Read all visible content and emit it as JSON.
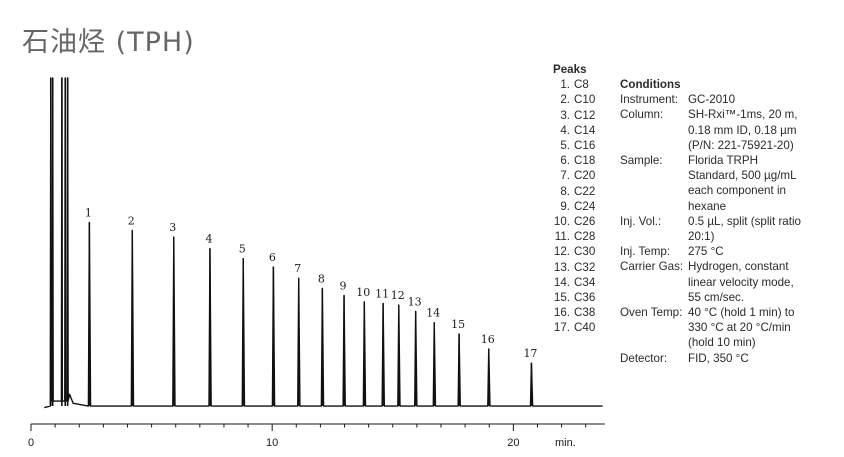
{
  "title": "石油烃 (TPH)",
  "peaks_heading": "Peaks",
  "peaks": [
    {
      "num": "1.",
      "comp": "C8"
    },
    {
      "num": "2.",
      "comp": "C10"
    },
    {
      "num": "3.",
      "comp": "C12"
    },
    {
      "num": "4.",
      "comp": "C14"
    },
    {
      "num": "5.",
      "comp": "C16"
    },
    {
      "num": "6.",
      "comp": "C18"
    },
    {
      "num": "7.",
      "comp": "C20"
    },
    {
      "num": "8.",
      "comp": "C22"
    },
    {
      "num": "9.",
      "comp": "C24"
    },
    {
      "num": "10.",
      "comp": "C26"
    },
    {
      "num": "11.",
      "comp": "C28"
    },
    {
      "num": "12.",
      "comp": "C30"
    },
    {
      "num": "13.",
      "comp": "C32"
    },
    {
      "num": "14.",
      "comp": "C34"
    },
    {
      "num": "15.",
      "comp": "C36"
    },
    {
      "num": "16.",
      "comp": "C38"
    },
    {
      "num": "17.",
      "comp": "C40"
    }
  ],
  "conditions_heading": "Conditions",
  "conditions": [
    {
      "label": "Instrument:",
      "value": "GC-2010"
    },
    {
      "label": "Column:",
      "value": "SH-Rxi™-1ms, 20 m,\n0.18 mm ID, 0.18 µm\n(P/N: 221-75921-20)"
    },
    {
      "label": "Sample:",
      "value": "Florida TRPH\nStandard, 500 µg/mL\neach component in\nhexane"
    },
    {
      "label": "Inj. Vol.:",
      "value": "0.5 µL, split (split ratio\n20:1)"
    },
    {
      "label": "Inj. Temp:",
      "value": "275 °C"
    },
    {
      "label": "Carrier Gas:",
      "value": "Hydrogen, constant\nlinear velocity mode,\n55 cm/sec."
    },
    {
      "label": "Oven Temp:",
      "value": "40 °C (hold 1 min) to\n330 °C at 20 °C/min\n(hold 10 min)"
    },
    {
      "label": "Detector:",
      "value": "FID, 350 °C"
    }
  ],
  "chart_data": {
    "type": "line",
    "xlabel": "min.",
    "xlim": [
      0,
      23.8
    ],
    "x_ticks": [
      0,
      10,
      20
    ],
    "x_minor_step": 1,
    "ylim": [
      0,
      100
    ],
    "baseline": 1.2,
    "solvent_front": [
      {
        "x": 0.82,
        "y": 100
      },
      {
        "x": 0.9,
        "y": 100
      },
      {
        "x": 1.28,
        "y": 100
      },
      {
        "x": 1.42,
        "y": 100
      },
      {
        "x": 1.52,
        "y": 100
      }
    ],
    "peaks": [
      {
        "label": "1",
        "x": 2.42,
        "y": 56.5
      },
      {
        "label": "2",
        "x": 4.2,
        "y": 54.1
      },
      {
        "label": "3",
        "x": 5.92,
        "y": 52.1
      },
      {
        "label": "4",
        "x": 7.42,
        "y": 48.6
      },
      {
        "label": "5",
        "x": 8.8,
        "y": 45.6
      },
      {
        "label": "6",
        "x": 10.05,
        "y": 43.1
      },
      {
        "label": "7",
        "x": 11.1,
        "y": 39.7
      },
      {
        "label": "8",
        "x": 12.08,
        "y": 36.6
      },
      {
        "label": "9",
        "x": 12.98,
        "y": 34.5
      },
      {
        "label": "10",
        "x": 13.82,
        "y": 32.6
      },
      {
        "label": "11",
        "x": 14.6,
        "y": 32.1
      },
      {
        "label": "12",
        "x": 15.25,
        "y": 31.6
      },
      {
        "label": "13",
        "x": 15.95,
        "y": 29.7
      },
      {
        "label": "14",
        "x": 16.72,
        "y": 26.3
      },
      {
        "label": "15",
        "x": 17.75,
        "y": 22.9
      },
      {
        "label": "16",
        "x": 18.98,
        "y": 18.4
      },
      {
        "label": "17",
        "x": 20.75,
        "y": 14.1
      }
    ]
  }
}
